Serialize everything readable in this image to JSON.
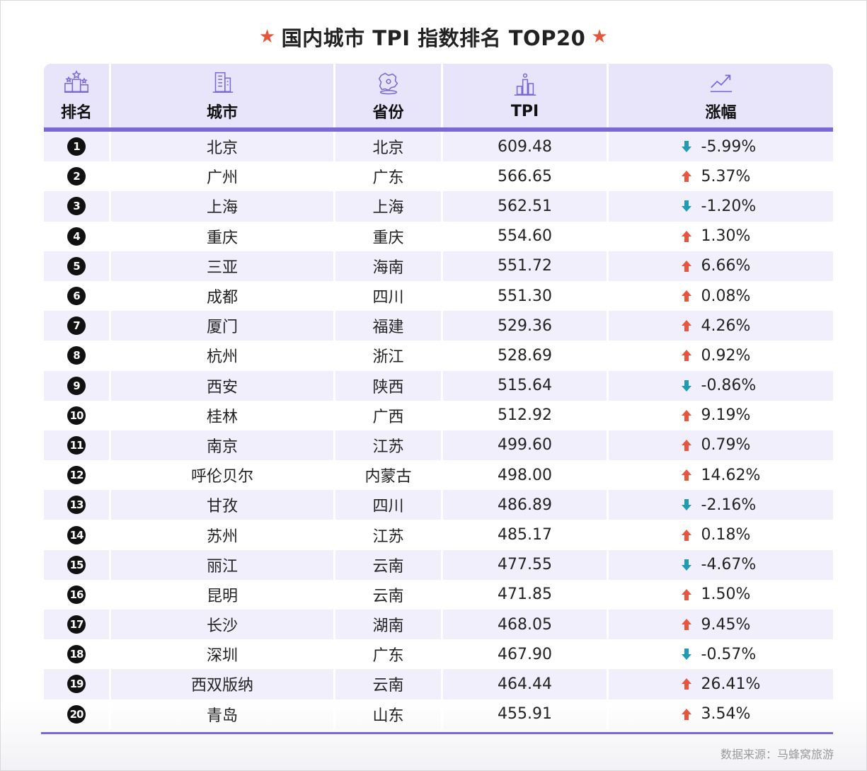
{
  "title": "国内城市 TPI 指数排名 TOP20",
  "header": {
    "rank": "排名",
    "city": "城市",
    "province": "省份",
    "tpi": "TPI",
    "change": "涨幅",
    "icons": [
      "ranking-podium-icon",
      "building-icon",
      "map-icon",
      "chart-bar-icon",
      "trend-up-icon"
    ]
  },
  "colors": {
    "accent": "#7b68d6",
    "header_bg": "#e8e4fa",
    "row_alt_bg": "#f1effc",
    "up": "#e8553e",
    "down": "#1f9bb3",
    "star": "#e2563c"
  },
  "rows": [
    {
      "rank": "1",
      "city": "北京",
      "province": "北京",
      "tpi": "609.48",
      "change": "-5.99%",
      "dir": "down"
    },
    {
      "rank": "2",
      "city": "广州",
      "province": "广东",
      "tpi": "566.65",
      "change": "5.37%",
      "dir": "up"
    },
    {
      "rank": "3",
      "city": "上海",
      "province": "上海",
      "tpi": "562.51",
      "change": "-1.20%",
      "dir": "down"
    },
    {
      "rank": "4",
      "city": "重庆",
      "province": "重庆",
      "tpi": "554.60",
      "change": "1.30%",
      "dir": "up"
    },
    {
      "rank": "5",
      "city": "三亚",
      "province": "海南",
      "tpi": "551.72",
      "change": "6.66%",
      "dir": "up"
    },
    {
      "rank": "6",
      "city": "成都",
      "province": "四川",
      "tpi": "551.30",
      "change": "0.08%",
      "dir": "up"
    },
    {
      "rank": "7",
      "city": "厦门",
      "province": "福建",
      "tpi": "529.36",
      "change": "4.26%",
      "dir": "up"
    },
    {
      "rank": "8",
      "city": "杭州",
      "province": "浙江",
      "tpi": "528.69",
      "change": "0.92%",
      "dir": "up"
    },
    {
      "rank": "9",
      "city": "西安",
      "province": "陕西",
      "tpi": "515.64",
      "change": "-0.86%",
      "dir": "down"
    },
    {
      "rank": "10",
      "city": "桂林",
      "province": "广西",
      "tpi": "512.92",
      "change": "9.19%",
      "dir": "up"
    },
    {
      "rank": "11",
      "city": "南京",
      "province": "江苏",
      "tpi": "499.60",
      "change": "0.79%",
      "dir": "up"
    },
    {
      "rank": "12",
      "city": "呼伦贝尔",
      "province": "内蒙古",
      "tpi": "498.00",
      "change": "14.62%",
      "dir": "up"
    },
    {
      "rank": "13",
      "city": "甘孜",
      "province": "四川",
      "tpi": "486.89",
      "change": "-2.16%",
      "dir": "down"
    },
    {
      "rank": "14",
      "city": "苏州",
      "province": "江苏",
      "tpi": "485.17",
      "change": "0.18%",
      "dir": "up"
    },
    {
      "rank": "15",
      "city": "丽江",
      "province": "云南",
      "tpi": "477.55",
      "change": "-4.67%",
      "dir": "down"
    },
    {
      "rank": "16",
      "city": "昆明",
      "province": "云南",
      "tpi": "471.85",
      "change": "1.50%",
      "dir": "up"
    },
    {
      "rank": "17",
      "city": "长沙",
      "province": "湖南",
      "tpi": "468.05",
      "change": "9.45%",
      "dir": "up"
    },
    {
      "rank": "18",
      "city": "深圳",
      "province": "广东",
      "tpi": "467.90",
      "change": "-0.57%",
      "dir": "down"
    },
    {
      "rank": "19",
      "city": "西双版纳",
      "province": "云南",
      "tpi": "464.44",
      "change": "26.41%",
      "dir": "up"
    },
    {
      "rank": "20",
      "city": "青岛",
      "province": "山东",
      "tpi": "455.91",
      "change": "3.54%",
      "dir": "up"
    }
  ],
  "source": "数据来源：马蜂窝旅游"
}
